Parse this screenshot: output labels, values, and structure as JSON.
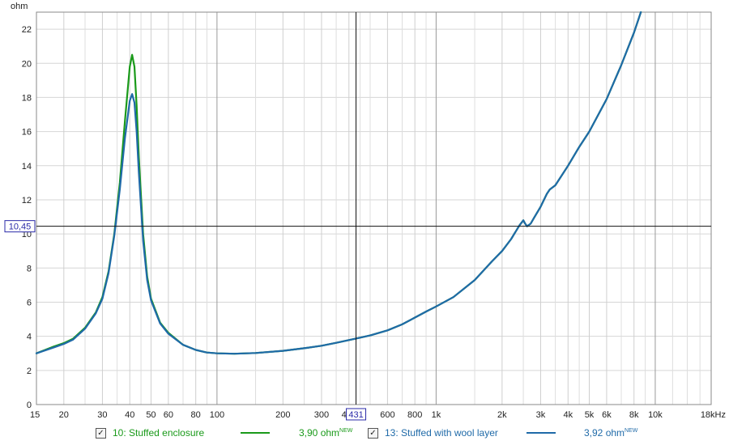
{
  "chart_data": {
    "type": "line",
    "ylabel": "ohm",
    "xlabel": "",
    "x_scale": "log",
    "xlim": [
      15,
      18000
    ],
    "ylim": [
      0,
      23
    ],
    "y_ticks": [
      0,
      2,
      4,
      6,
      8,
      10,
      12,
      14,
      16,
      18,
      20,
      22
    ],
    "y_tick_labels": [
      "0",
      "2",
      "4",
      "6",
      "8",
      "10",
      "12",
      "14",
      "16",
      "18",
      "20",
      "22"
    ],
    "x_major_ticks": [
      15,
      20,
      30,
      40,
      50,
      60,
      80,
      100,
      200,
      300,
      400,
      600,
      800,
      1000,
      2000,
      3000,
      4000,
      5000,
      6000,
      8000,
      10000,
      18000
    ],
    "x_tick_labels": [
      "15",
      "20",
      "30",
      "40",
      "50",
      "60",
      "80",
      "100",
      "200",
      "300",
      "400",
      "600",
      "800",
      "1k",
      "2k",
      "3k",
      "4k",
      "5k",
      "6k",
      "8k",
      "10k",
      "18kHz"
    ],
    "x_minor_ticks": [
      25,
      35,
      45,
      70,
      90,
      150,
      250,
      350,
      450,
      500,
      700,
      900,
      1500,
      2500,
      3500,
      4500,
      7000,
      9000,
      12000,
      14000,
      16000
    ],
    "cursor": {
      "x": 431,
      "y": 10.45,
      "x_label": "431",
      "y_label": "10,45"
    },
    "series": [
      {
        "name": "10: Stuffed enclosure",
        "legend_value": "3,90 ohm",
        "legend_badge": "NEW",
        "color": "#1a9a1a",
        "x": [
          15,
          18,
          20,
          22,
          25,
          28,
          30,
          32,
          34,
          36,
          38,
          40,
          41,
          42,
          43,
          44,
          46,
          48,
          50,
          55,
          60,
          70,
          80,
          90,
          100,
          120,
          150,
          200,
          250,
          300,
          350,
          400,
          450,
          500,
          600,
          700,
          800,
          900,
          1000,
          1200,
          1500,
          1800,
          2000,
          2200,
          2400,
          2500,
          2550,
          2600,
          2700,
          2800,
          3000,
          3200,
          3300,
          3500,
          4000,
          4500,
          5000,
          6000,
          7000,
          8000,
          8600
        ],
        "y": [
          3.0,
          3.4,
          3.6,
          3.85,
          4.5,
          5.4,
          6.3,
          7.8,
          10.0,
          13.0,
          16.6,
          19.8,
          20.5,
          19.8,
          17.5,
          14.5,
          10.0,
          7.5,
          6.2,
          4.8,
          4.2,
          3.5,
          3.2,
          3.05,
          3.0,
          2.98,
          3.02,
          3.15,
          3.3,
          3.45,
          3.62,
          3.78,
          3.92,
          4.05,
          4.35,
          4.7,
          5.1,
          5.45,
          5.75,
          6.3,
          7.3,
          8.4,
          9.0,
          9.7,
          10.5,
          10.8,
          10.6,
          10.45,
          10.6,
          10.95,
          11.6,
          12.35,
          12.6,
          12.85,
          14.0,
          15.1,
          16.0,
          17.9,
          19.9,
          21.8,
          23.0
        ]
      },
      {
        "name": "13: Stuffed with wool layer",
        "legend_value": "3,92 ohm",
        "legend_badge": "NEW",
        "color": "#1f6aa8",
        "x": [
          15,
          18,
          20,
          22,
          25,
          28,
          30,
          32,
          34,
          36,
          38,
          40,
          41,
          42,
          43,
          44,
          46,
          48,
          50,
          55,
          60,
          70,
          80,
          90,
          100,
          120,
          150,
          200,
          250,
          300,
          350,
          400,
          450,
          500,
          600,
          700,
          800,
          900,
          1000,
          1200,
          1500,
          1800,
          2000,
          2200,
          2400,
          2500,
          2550,
          2600,
          2700,
          2800,
          3000,
          3200,
          3300,
          3500,
          4000,
          4500,
          5000,
          6000,
          7000,
          8000,
          8600
        ],
        "y": [
          3.0,
          3.35,
          3.55,
          3.8,
          4.45,
          5.35,
          6.2,
          7.7,
          9.9,
          12.6,
          15.6,
          17.8,
          18.2,
          17.7,
          16.0,
          13.6,
          9.6,
          7.3,
          6.1,
          4.75,
          4.15,
          3.5,
          3.2,
          3.05,
          3.0,
          2.98,
          3.02,
          3.15,
          3.3,
          3.45,
          3.62,
          3.78,
          3.92,
          4.05,
          4.35,
          4.7,
          5.1,
          5.45,
          5.75,
          6.3,
          7.3,
          8.4,
          9.0,
          9.7,
          10.5,
          10.8,
          10.6,
          10.45,
          10.6,
          10.95,
          11.6,
          12.35,
          12.6,
          12.85,
          14.0,
          15.1,
          16.0,
          17.9,
          19.9,
          21.8,
          23.0
        ]
      }
    ]
  },
  "legend": {
    "check_mark": "✓",
    "items": [
      {
        "label": "10: Stuffed enclosure",
        "value": "3,90 ohm",
        "badge": "NEW",
        "color": "#1a9a1a"
      },
      {
        "label": "13: Stuffed with wool layer",
        "value": "3,92 ohm",
        "badge": "NEW",
        "color": "#1f6aa8"
      }
    ]
  }
}
